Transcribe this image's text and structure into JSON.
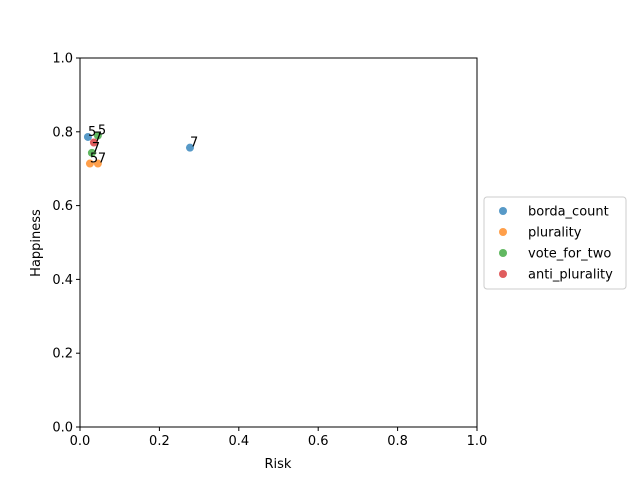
{
  "chart_data": {
    "type": "scatter",
    "xlabel": "Risk",
    "ylabel": "Happiness",
    "xlim": [
      0,
      1
    ],
    "ylim": [
      0,
      1
    ],
    "xticks": [
      "0.0",
      "0.2",
      "0.4",
      "0.6",
      "0.8",
      "1.0"
    ],
    "yticks": [
      "0.0",
      "0.2",
      "0.4",
      "0.6",
      "0.8",
      "1.0"
    ],
    "grid": false,
    "legend_position": "right",
    "series": [
      {
        "name": "borda_count",
        "color": "#1f77b4",
        "points": [
          {
            "x": 0.02,
            "y": 0.786,
            "label": "5"
          },
          {
            "x": 0.277,
            "y": 0.757,
            "label": "7"
          }
        ]
      },
      {
        "name": "plurality",
        "color": "#ff7f0e",
        "points": [
          {
            "x": 0.025,
            "y": 0.714,
            "label": "5"
          },
          {
            "x": 0.045,
            "y": 0.714,
            "label": "7"
          }
        ]
      },
      {
        "name": "vote_for_two",
        "color": "#2ca02c",
        "points": [
          {
            "x": 0.045,
            "y": 0.79,
            "label": "5"
          },
          {
            "x": 0.03,
            "y": 0.743,
            "label": "7"
          }
        ]
      },
      {
        "name": "anti_plurality",
        "color": "#d62728",
        "points": [
          {
            "x": 0.035,
            "y": 0.771,
            "label": "7"
          }
        ]
      }
    ]
  }
}
